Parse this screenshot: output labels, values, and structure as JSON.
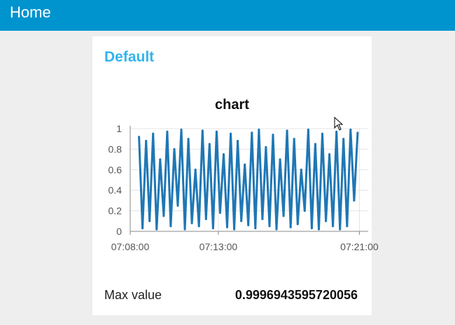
{
  "header": {
    "title": "Home"
  },
  "group": {
    "title": "Default"
  },
  "chart_data": {
    "type": "line",
    "title": "chart",
    "xlabel": "",
    "ylabel": "",
    "ylim": [
      0,
      1
    ],
    "y_ticks": [
      "0",
      "0.2",
      "0.4",
      "0.6",
      "0.8",
      "1"
    ],
    "x_ticks": [
      "07:08:00",
      "07:13:00",
      "07:21:00"
    ],
    "x_tick_minutes": [
      0,
      5,
      13
    ],
    "series_color": "#1f77b4",
    "grid": true,
    "x_minutes": [
      0.5,
      0.7,
      0.9,
      1.1,
      1.3,
      1.5,
      1.7,
      1.9,
      2.1,
      2.3,
      2.5,
      2.7,
      2.9,
      3.1,
      3.3,
      3.5,
      3.7,
      3.9,
      4.1,
      4.3,
      4.5,
      4.7,
      4.9,
      5.1,
      5.3,
      5.5,
      5.7,
      5.9,
      6.1,
      6.3,
      6.5,
      6.7,
      6.9,
      7.1,
      7.3,
      7.5,
      7.7,
      7.9,
      8.1,
      8.3,
      8.5,
      8.7,
      8.9,
      9.1,
      9.3,
      9.5,
      9.7,
      9.9,
      10.1,
      10.3,
      10.5,
      10.7,
      10.9,
      11.1,
      11.3,
      11.5,
      11.7,
      11.9,
      12.1,
      12.3,
      12.5,
      12.7,
      12.9
    ],
    "values": [
      0.92,
      0.03,
      0.88,
      0.1,
      0.95,
      0.02,
      0.7,
      0.15,
      0.97,
      0.05,
      0.8,
      0.25,
      0.99,
      0.02,
      0.9,
      0.08,
      0.6,
      0.05,
      0.98,
      0.12,
      0.85,
      0.03,
      0.97,
      0.18,
      0.75,
      0.04,
      0.95,
      0.02,
      0.88,
      0.1,
      0.65,
      0.06,
      0.96,
      0.03,
      0.99,
      0.12,
      0.82,
      0.05,
      0.94,
      0.02,
      0.7,
      0.15,
      0.98,
      0.04,
      0.9,
      0.07,
      0.6,
      0.2,
      0.99,
      0.03,
      0.85,
      0.02,
      0.95,
      0.1,
      0.75,
      0.05,
      0.97,
      0.02,
      0.9,
      0.05,
      0.99,
      0.3,
      0.96
    ]
  },
  "stats": {
    "label": "Max value",
    "value": "0.9996943595720056"
  }
}
